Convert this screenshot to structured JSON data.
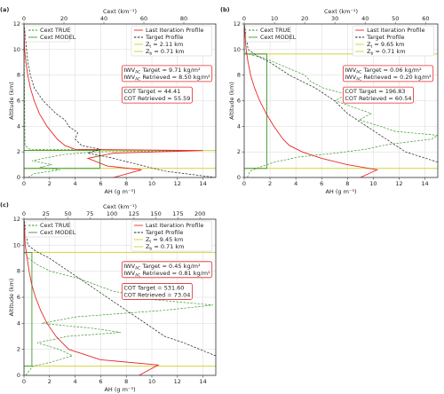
{
  "chart_data": [
    {
      "type": "line",
      "panel_label": "(a)",
      "xlabel": "AH (g m⁻³)",
      "x2label": "Cext (km⁻¹)",
      "ylabel": "Altitude (km)",
      "xlim": [
        0,
        15
      ],
      "xticks": [
        0,
        2,
        4,
        6,
        8,
        10,
        12,
        14
      ],
      "x2lim": [
        0,
        96
      ],
      "x2ticks": [
        0,
        20,
        40,
        60,
        80
      ],
      "ylim": [
        0,
        12
      ],
      "yticks": [
        0,
        2,
        4,
        6,
        8,
        10,
        12
      ],
      "grid": true,
      "series": [
        {
          "name": "Cext TRUE",
          "color": "#3a9a2a",
          "style": "dashed",
          "axis": "x2",
          "altitude": [
            0,
            0.3,
            0.6,
            0.8,
            1.0,
            1.3,
            1.5,
            1.8,
            2.0,
            2.1,
            2.2,
            2.5,
            12
          ],
          "values": [
            2,
            5,
            18,
            8,
            14,
            4,
            10,
            20,
            36,
            85,
            3,
            0.5,
            0
          ]
        },
        {
          "name": "Cext MODEL",
          "color": "#3a9a2a",
          "style": "solid",
          "axis": "x2",
          "altitude": [
            0,
            0.71,
            0.71,
            2.11,
            2.11,
            12
          ],
          "values": [
            0,
            0,
            38,
            38,
            0,
            0
          ]
        },
        {
          "name": "Last Iteration Profile",
          "color": "#e8282a",
          "style": "solid",
          "axis": "x",
          "altitude": [
            0,
            0.6,
            0.9,
            1.5,
            1.9,
            2.1,
            2.2,
            2.5,
            3,
            4,
            5,
            6,
            7,
            8,
            9,
            10,
            12
          ],
          "values": [
            7,
            9.2,
            6.5,
            5,
            7,
            14,
            4,
            3.2,
            2.6,
            1.8,
            1.2,
            0.8,
            0.5,
            0.3,
            0.15,
            0.05,
            0
          ]
        },
        {
          "name": "Target Profile",
          "color": "#222222",
          "style": "dashed",
          "axis": "x",
          "altitude": [
            0,
            0.5,
            1,
            1.5,
            1.9,
            2.2,
            2.5,
            3,
            3.5,
            4,
            4.5,
            5,
            6,
            7,
            8,
            9,
            10,
            11,
            12
          ],
          "values": [
            15,
            11,
            9,
            7,
            5,
            6,
            4.5,
            4,
            4.2,
            3.5,
            3.2,
            2.5,
            1.5,
            0.8,
            0.5,
            0.3,
            0.2,
            0.1,
            0
          ]
        }
      ],
      "zt": 2.11,
      "zb": 0.71,
      "z_color": "#d4d43a",
      "zt_label": {
        "symbol": "Z",
        "sub": "t",
        "text": " = 2.11 km"
      },
      "zb_label": {
        "symbol": "Z",
        "sub": "b",
        "text": " = 0.71 km"
      },
      "iwv": [
        {
          "prefix": "IWV",
          "sub": "AC",
          "text": " Target = 9.71 kg/m²"
        },
        {
          "prefix": "IWV",
          "sub": "AC",
          "text": " Retrieved = 8.50 kg/m²"
        }
      ],
      "cot": [
        "COT Target = 44.41",
        "COT Retrieved = 55.59"
      ]
    },
    {
      "type": "line",
      "panel_label": "(b)",
      "xlabel": "AH (g m⁻³)",
      "x2label": "Cext (km⁻¹)",
      "ylabel": "Altitude (km)",
      "xlim": [
        0,
        15
      ],
      "xticks": [
        0,
        2,
        4,
        6,
        8,
        10,
        12,
        14
      ],
      "x2lim": [
        0,
        64
      ],
      "x2ticks": [
        0,
        10,
        20,
        30,
        40,
        50,
        60
      ],
      "ylim": [
        0,
        12
      ],
      "yticks": [
        0,
        2,
        4,
        6,
        8,
        10,
        12
      ],
      "grid": true,
      "series": [
        {
          "name": "Cext TRUE",
          "color": "#3a9a2a",
          "style": "dashed",
          "axis": "x2",
          "altitude": [
            0,
            0.5,
            0.8,
            1.2,
            1.6,
            1.9,
            2.2,
            2.6,
            3.0,
            3.3,
            3.6,
            4,
            4.5,
            5,
            5.5,
            6,
            6.5,
            7,
            7.5,
            8,
            8.5,
            9,
            9.4,
            9.6,
            9.8,
            12
          ],
          "values": [
            1,
            2,
            5,
            10,
            18,
            30,
            40,
            48,
            62,
            64,
            50,
            45,
            38,
            42,
            36,
            30,
            34,
            26,
            22,
            20,
            15,
            10,
            6,
            2,
            0,
            0
          ]
        },
        {
          "name": "Cext MODEL",
          "color": "#3a9a2a",
          "style": "solid",
          "axis": "x2",
          "altitude": [
            0,
            0.71,
            0.71,
            9.65,
            9.65,
            12
          ],
          "values": [
            0,
            0,
            7.5,
            7.5,
            0,
            0
          ]
        },
        {
          "name": "Last Iteration Profile",
          "color": "#e8282a",
          "style": "solid",
          "axis": "x",
          "altitude": [
            0,
            0.6,
            1,
            1.5,
            2,
            2.5,
            3,
            4,
            5,
            6,
            7,
            8,
            9,
            10,
            12
          ],
          "values": [
            9,
            10.3,
            8,
            6,
            4.5,
            3.5,
            3,
            2.3,
            1.7,
            1.2,
            0.8,
            0.5,
            0.3,
            0.15,
            0
          ]
        },
        {
          "name": "Target Profile",
          "color": "#222222",
          "style": "dashed",
          "axis": "x",
          "altitude": [
            1.2,
            2,
            3,
            4,
            5,
            6,
            7,
            8,
            9,
            9.5,
            10,
            12
          ],
          "values": [
            15,
            12.5,
            11,
            9.5,
            8,
            7,
            5.5,
            3.5,
            2,
            1,
            0.3,
            0
          ]
        }
      ],
      "zt": 9.65,
      "zb": 0.71,
      "z_color": "#d4d43a",
      "zt_label": {
        "symbol": "Z",
        "sub": "t",
        "text": " = 9.65 km"
      },
      "zb_label": {
        "symbol": "Z",
        "sub": "b",
        "text": " = 0.71 km"
      },
      "iwv": [
        {
          "prefix": "IWV",
          "sub": "AC",
          "text": " Target = 0.06 kg/m²"
        },
        {
          "prefix": "IWV",
          "sub": "AC",
          "text": " Retrieved = 0.20 kg/m²"
        }
      ],
      "cot": [
        "COT Target = 196.83",
        "COT Retrieved = 60.54"
      ]
    },
    {
      "type": "line",
      "panel_label": "(c)",
      "xlabel": "AH (g m⁻³)",
      "x2label": "Cext (km⁻¹)",
      "ylabel": "Altitude (km)",
      "xlim": [
        0,
        15
      ],
      "xticks": [
        0,
        2,
        4,
        6,
        8,
        10,
        12,
        14
      ],
      "x2lim": [
        0,
        218
      ],
      "x2ticks": [
        0,
        25,
        50,
        75,
        100,
        125,
        150,
        175,
        200
      ],
      "ylim": [
        0,
        12
      ],
      "yticks": [
        0,
        2,
        4,
        6,
        8,
        10,
        12
      ],
      "grid": true,
      "series": [
        {
          "name": "Cext TRUE",
          "color": "#3a9a2a",
          "style": "dashed",
          "axis": "x2",
          "altitude": [
            0,
            0.7,
            1,
            1.5,
            2,
            2.5,
            3,
            3.3,
            3.6,
            4,
            4.5,
            5,
            5.4,
            5.8,
            6.5,
            7,
            7.5,
            8,
            8.5,
            9,
            9.5,
            12
          ],
          "values": [
            2,
            10,
            30,
            55,
            40,
            15,
            50,
            110,
            80,
            20,
            60,
            160,
            215,
            150,
            100,
            80,
            60,
            30,
            15,
            5,
            0,
            0
          ]
        },
        {
          "name": "Cext MODEL",
          "color": "#3a9a2a",
          "style": "solid",
          "axis": "x2",
          "altitude": [
            0,
            0.71,
            0.71,
            9.45,
            9.45,
            12
          ],
          "values": [
            0,
            0,
            9,
            9,
            0,
            0
          ]
        },
        {
          "name": "Last Iteration Profile",
          "color": "#e8282a",
          "style": "solid",
          "axis": "x",
          "altitude": [
            0,
            0.8,
            1.2,
            2,
            3,
            4,
            5,
            6,
            7,
            8,
            9,
            10,
            12
          ],
          "values": [
            9,
            10.5,
            6,
            3.5,
            2.5,
            1.8,
            1.3,
            0.9,
            0.6,
            0.4,
            0.25,
            0.1,
            0
          ]
        },
        {
          "name": "Target Profile",
          "color": "#222222",
          "style": "dashed",
          "axis": "x",
          "altitude": [
            1.5,
            2.5,
            3,
            4,
            5,
            6,
            7,
            8,
            9,
            9.5,
            10,
            12
          ],
          "values": [
            15,
            12.5,
            11,
            9.5,
            8,
            6.5,
            5,
            3.5,
            2,
            1,
            0.3,
            0
          ]
        }
      ],
      "zt": 9.45,
      "zb": 0.71,
      "z_color": "#d4d43a",
      "zt_label": {
        "symbol": "Z",
        "sub": "t",
        "text": " = 9.45 km"
      },
      "zb_label": {
        "symbol": "Z",
        "sub": "b",
        "text": " = 0.71 km"
      },
      "iwv": [
        {
          "prefix": "IWV",
          "sub": "AC",
          "text": " Target = 0.45 kg/m²"
        },
        {
          "prefix": "IWV",
          "sub": "AC",
          "text": " Retrieved = 0.81 kg/m²"
        }
      ],
      "cot": [
        "COT Target = 531.60",
        "COT Retrieved = 73.04"
      ]
    }
  ]
}
